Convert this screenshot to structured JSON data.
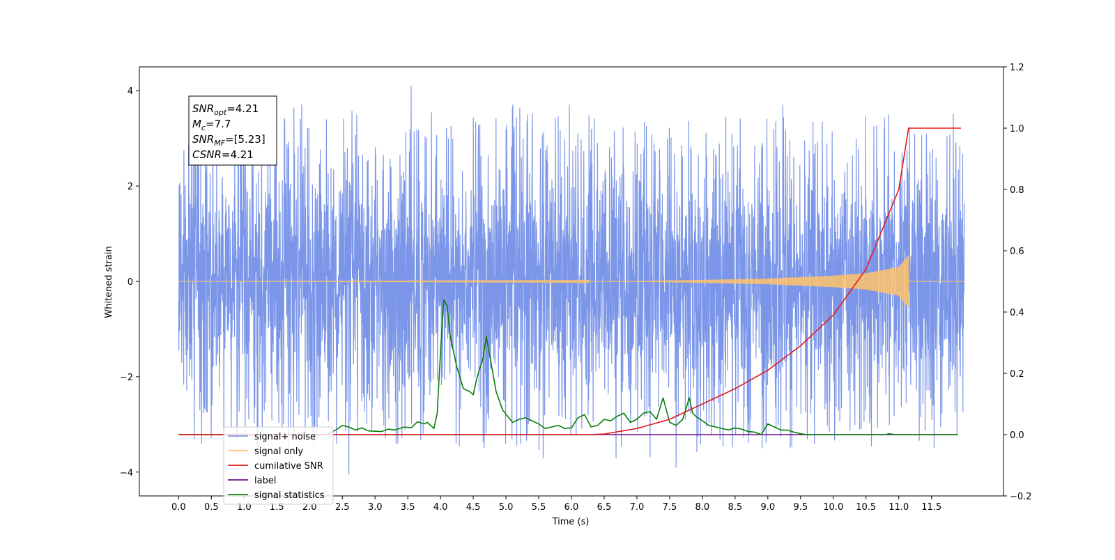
{
  "chart_data": {
    "type": "line",
    "xlabel": "Time (s)",
    "ylabel": "Whitened strain",
    "xlim": [
      -0.6,
      12.6
    ],
    "ylim": [
      -4.5,
      4.5
    ],
    "y2lim": [
      -0.2,
      1.2
    ],
    "x_ticks": [
      0.0,
      0.5,
      1.0,
      1.5,
      2.0,
      2.5,
      3.0,
      3.5,
      4.0,
      4.5,
      5.0,
      5.5,
      6.0,
      6.5,
      7.0,
      7.5,
      8.0,
      8.5,
      9.0,
      9.5,
      10.0,
      10.5,
      11.0,
      11.5
    ],
    "x_tick_labels": [
      "0.0",
      "0.5",
      "1.0",
      "1.5",
      "2.0",
      "2.5",
      "3.0",
      "3.5",
      "4.0",
      "4.5",
      "5.0",
      "5.5",
      "6.0",
      "6.5",
      "7.0",
      "7.5",
      "8.0",
      "8.5",
      "9.0",
      "9.5",
      "10.0",
      "10.5",
      "11.0",
      "11.5"
    ],
    "y_ticks": [
      -4,
      -2,
      0,
      2,
      4
    ],
    "y_tick_labels": [
      "−4",
      "−2",
      "0",
      "2",
      "4"
    ],
    "y2_ticks": [
      -0.2,
      0.0,
      0.2,
      0.4,
      0.6,
      0.8,
      1.0,
      1.2
    ],
    "y2_tick_labels": [
      "−0.2",
      "0.0",
      "0.2",
      "0.4",
      "0.6",
      "0.8",
      "1.0",
      "1.2"
    ],
    "legend_position": "lower-left",
    "grid": false,
    "series": [
      {
        "name": "signal+ noise",
        "axis": "left",
        "color": "#7b96e8",
        "style": "dense noise, approx. ±2.5 typical, peaks to ±4",
        "x_range": [
          0.0,
          12.0
        ],
        "amplitude_typical": 2.5,
        "peaks": [
          [
            3.55,
            4.1
          ],
          [
            2.6,
            -4.05
          ],
          [
            7.6,
            -3.9
          ],
          [
            0.35,
            -3.4
          ]
        ]
      },
      {
        "name": "signal only",
        "axis": "left",
        "color": "#ffc36b",
        "style": "chirp, amplitude growing to ~0.5 at 11.15 s then zero",
        "x_range": [
          0.0,
          12.0
        ],
        "merger_time": 11.15,
        "envelope": [
          [
            0.0,
            0.0
          ],
          [
            6.0,
            0.005
          ],
          [
            7.0,
            0.01
          ],
          [
            8.0,
            0.03
          ],
          [
            9.0,
            0.06
          ],
          [
            10.0,
            0.12
          ],
          [
            10.5,
            0.17
          ],
          [
            11.0,
            0.3
          ],
          [
            11.15,
            0.55
          ],
          [
            11.16,
            0.0
          ],
          [
            12.0,
            0.0
          ]
        ]
      },
      {
        "name": "cumilative SNR",
        "axis": "right",
        "color": "#e31a1c",
        "points": [
          [
            0.0,
            0.0
          ],
          [
            6.3,
            0.0
          ],
          [
            6.5,
            0.002
          ],
          [
            7.0,
            0.02
          ],
          [
            7.5,
            0.05
          ],
          [
            8.0,
            0.1
          ],
          [
            8.5,
            0.15
          ],
          [
            9.0,
            0.21
          ],
          [
            9.5,
            0.29
          ],
          [
            10.0,
            0.39
          ],
          [
            10.5,
            0.54
          ],
          [
            11.0,
            0.8
          ],
          [
            11.15,
            1.0
          ],
          [
            11.95,
            1.0
          ]
        ]
      },
      {
        "name": "label",
        "axis": "right",
        "color": "#6a0d83",
        "points": [
          [
            0.0,
            0.0
          ],
          [
            11.9,
            0.0
          ]
        ]
      },
      {
        "name": "signal statistics",
        "axis": "right",
        "color": "#0a7d0a",
        "points": [
          [
            0.0,
            0.0
          ],
          [
            2.25,
            0.0
          ],
          [
            2.4,
            0.015
          ],
          [
            2.5,
            0.03
          ],
          [
            2.6,
            0.025
          ],
          [
            2.7,
            0.015
          ],
          [
            2.8,
            0.022
          ],
          [
            2.9,
            0.012
          ],
          [
            3.1,
            0.01
          ],
          [
            3.2,
            0.018
          ],
          [
            3.3,
            0.015
          ],
          [
            3.45,
            0.025
          ],
          [
            3.55,
            0.022
          ],
          [
            3.65,
            0.042
          ],
          [
            3.75,
            0.035
          ],
          [
            3.8,
            0.04
          ],
          [
            3.9,
            0.02
          ],
          [
            3.95,
            0.07
          ],
          [
            4.0,
            0.27
          ],
          [
            4.05,
            0.44
          ],
          [
            4.1,
            0.42
          ],
          [
            4.15,
            0.32
          ],
          [
            4.25,
            0.22
          ],
          [
            4.35,
            0.15
          ],
          [
            4.45,
            0.14
          ],
          [
            4.5,
            0.13
          ],
          [
            4.55,
            0.18
          ],
          [
            4.65,
            0.25
          ],
          [
            4.7,
            0.32
          ],
          [
            4.8,
            0.2
          ],
          [
            4.85,
            0.14
          ],
          [
            4.95,
            0.08
          ],
          [
            5.1,
            0.04
          ],
          [
            5.2,
            0.05
          ],
          [
            5.3,
            0.055
          ],
          [
            5.4,
            0.045
          ],
          [
            5.5,
            0.035
          ],
          [
            5.6,
            0.02
          ],
          [
            5.7,
            0.025
          ],
          [
            5.8,
            0.03
          ],
          [
            5.9,
            0.02
          ],
          [
            6.0,
            0.022
          ],
          [
            6.1,
            0.055
          ],
          [
            6.2,
            0.065
          ],
          [
            6.3,
            0.025
          ],
          [
            6.4,
            0.03
          ],
          [
            6.5,
            0.05
          ],
          [
            6.6,
            0.045
          ],
          [
            6.7,
            0.06
          ],
          [
            6.8,
            0.07
          ],
          [
            6.9,
            0.04
          ],
          [
            7.0,
            0.05
          ],
          [
            7.1,
            0.07
          ],
          [
            7.2,
            0.075
          ],
          [
            7.3,
            0.05
          ],
          [
            7.4,
            0.12
          ],
          [
            7.45,
            0.08
          ],
          [
            7.5,
            0.04
          ],
          [
            7.6,
            0.03
          ],
          [
            7.7,
            0.05
          ],
          [
            7.8,
            0.12
          ],
          [
            7.85,
            0.07
          ],
          [
            7.9,
            0.06
          ],
          [
            8.0,
            0.045
          ],
          [
            8.1,
            0.03
          ],
          [
            8.2,
            0.025
          ],
          [
            8.3,
            0.02
          ],
          [
            8.4,
            0.015
          ],
          [
            8.5,
            0.022
          ],
          [
            8.6,
            0.018
          ],
          [
            8.7,
            0.01
          ],
          [
            8.8,
            0.008
          ],
          [
            8.9,
            0.0
          ],
          [
            9.0,
            0.035
          ],
          [
            9.1,
            0.025
          ],
          [
            9.2,
            0.015
          ],
          [
            9.3,
            0.015
          ],
          [
            9.4,
            0.008
          ],
          [
            9.5,
            0.003
          ],
          [
            9.6,
            0.0
          ],
          [
            10.8,
            0.0
          ],
          [
            10.85,
            0.003
          ],
          [
            10.95,
            0.0
          ],
          [
            11.9,
            0.0
          ]
        ]
      }
    ],
    "annotation": [
      {
        "main": "SNR",
        "sub": "opt",
        "value": "=4.21"
      },
      {
        "main": "M",
        "sub": "c",
        "value": "=7.7"
      },
      {
        "main": "SNR",
        "sub": "MF",
        "value": "=[5.23]"
      },
      {
        "main": "CSNR",
        "sub": "",
        "value": "=4.21"
      }
    ],
    "legend_entries": [
      "signal+ noise",
      "signal only",
      "cumilative SNR",
      "label",
      "signal statistics"
    ]
  }
}
